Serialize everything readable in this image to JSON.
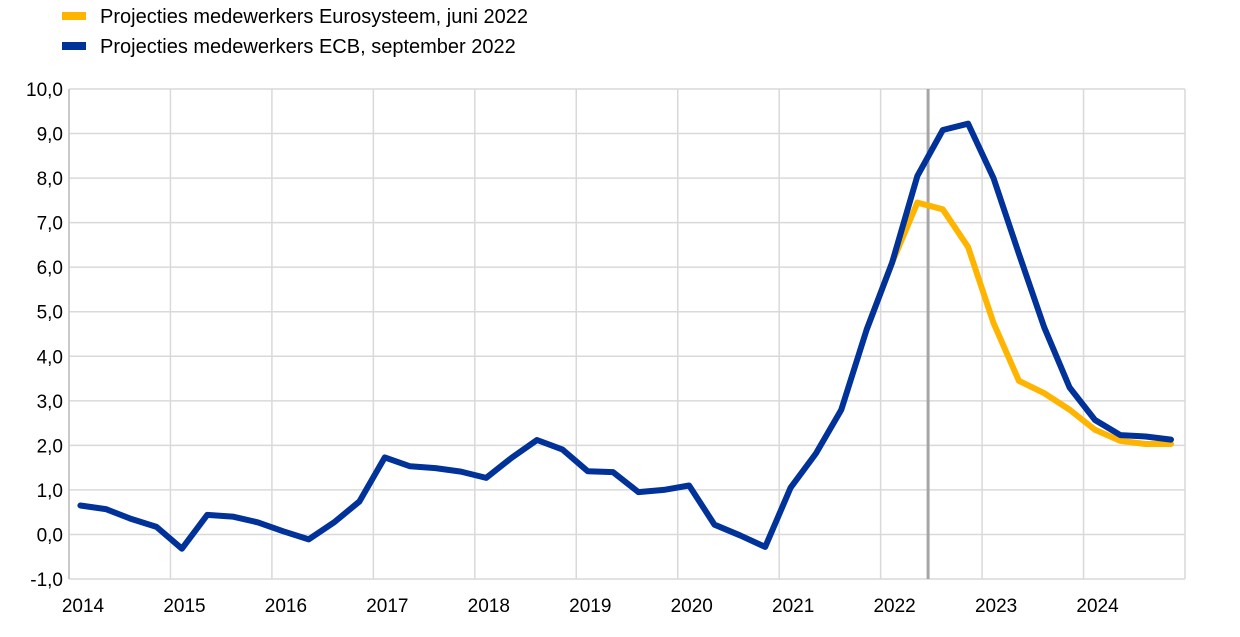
{
  "chart_data": {
    "type": "line",
    "title": "",
    "xlabel": "",
    "ylabel": "",
    "ylim": [
      -1,
      10
    ],
    "y_ticks": [
      "-1,0",
      "0,0",
      "1,0",
      "2,0",
      "3,0",
      "4,0",
      "5,0",
      "6,0",
      "7,0",
      "8,0",
      "9,0",
      "10,0"
    ],
    "x_ticks": [
      "2014",
      "2015",
      "2016",
      "2017",
      "2018",
      "2019",
      "2020",
      "2021",
      "2022",
      "2023",
      "2024"
    ],
    "grid": true,
    "legend_position": "top-left",
    "categories": [
      "2014Q1",
      "2014Q2",
      "2014Q3",
      "2014Q4",
      "2015Q1",
      "2015Q2",
      "2015Q3",
      "2015Q4",
      "2016Q1",
      "2016Q2",
      "2016Q3",
      "2016Q4",
      "2017Q1",
      "2017Q2",
      "2017Q3",
      "2017Q4",
      "2018Q1",
      "2018Q2",
      "2018Q3",
      "2018Q4",
      "2019Q1",
      "2019Q2",
      "2019Q3",
      "2019Q4",
      "2020Q1",
      "2020Q2",
      "2020Q3",
      "2020Q4",
      "2021Q1",
      "2021Q2",
      "2021Q3",
      "2021Q4",
      "2022Q1",
      "2022Q2",
      "2022Q3",
      "2022Q4",
      "2023Q1",
      "2023Q2",
      "2023Q3",
      "2023Q4",
      "2024Q1",
      "2024Q2",
      "2024Q3",
      "2024Q4"
    ],
    "series": [
      {
        "name": "Projecties medewerkers Eurosysteem, juni 2022",
        "color": "#FFB400",
        "values": [
          null,
          null,
          null,
          null,
          null,
          null,
          null,
          null,
          null,
          null,
          null,
          null,
          null,
          null,
          null,
          null,
          null,
          null,
          null,
          null,
          null,
          null,
          null,
          null,
          null,
          null,
          null,
          null,
          null,
          null,
          null,
          4.6,
          6.1,
          7.45,
          7.3,
          6.45,
          4.75,
          3.45,
          3.17,
          2.8,
          2.35,
          2.1,
          2.03,
          2.03
        ]
      },
      {
        "name": "Projecties medewerkers ECB, september 2022",
        "color": "#003299",
        "values": [
          0.65,
          0.57,
          0.35,
          0.17,
          -0.32,
          0.44,
          0.4,
          0.27,
          0.07,
          -0.11,
          0.27,
          0.74,
          1.73,
          1.53,
          1.49,
          1.41,
          1.27,
          1.72,
          2.12,
          1.91,
          1.42,
          1.4,
          0.95,
          1.0,
          1.1,
          0.22,
          -0.02,
          -0.28,
          1.05,
          1.82,
          2.8,
          4.6,
          6.1,
          8.05,
          9.08,
          9.22,
          8.0,
          6.3,
          4.65,
          3.3,
          2.57,
          2.23,
          2.2,
          2.13
        ]
      }
    ],
    "vertical_marker_color": "#A6A6A6"
  }
}
